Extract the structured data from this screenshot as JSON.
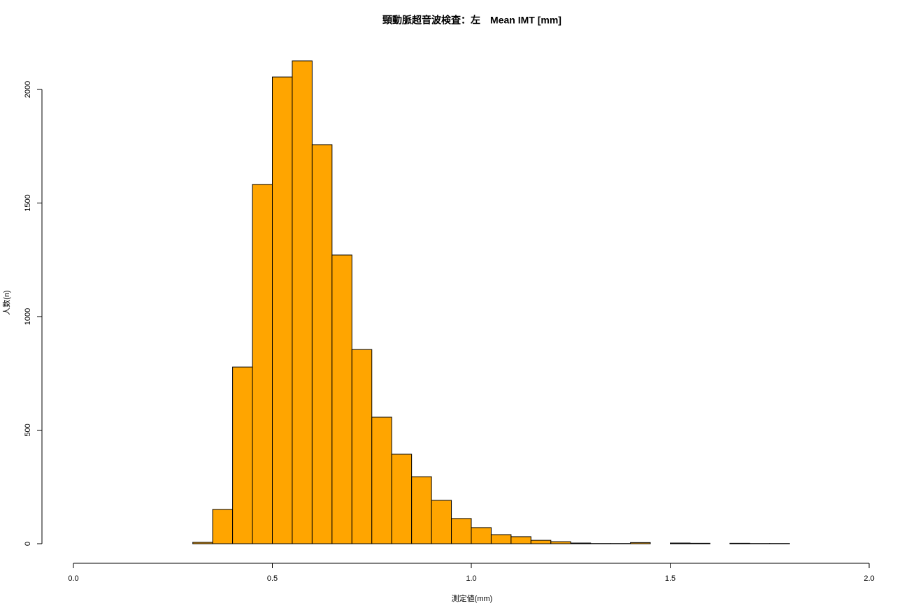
{
  "chart_data": {
    "type": "histogram",
    "title": "頸動脈超音波検査：左　Mean IMT [mm]",
    "x_label": "測定値(mm)",
    "y_label": "人数(n)",
    "color": "#ffa500",
    "bins": [
      0.25,
      0.3,
      0.35,
      0.4,
      0.45,
      0.5,
      0.55,
      0.6,
      0.65,
      0.7,
      0.75,
      0.8,
      0.85,
      0.9,
      0.95,
      1.0,
      1.05,
      1.1,
      1.15,
      1.2,
      1.25,
      1.3,
      1.35,
      1.4,
      1.45,
      1.5,
      1.55,
      1.6,
      1.65,
      1.7,
      1.75,
      1.8
    ],
    "values": [
      0,
      6,
      151,
      778,
      1582,
      2055,
      2126,
      1757,
      1271,
      855,
      557,
      394,
      295,
      191,
      111,
      71,
      40,
      31,
      15,
      9,
      3,
      1,
      1,
      5,
      0,
      3,
      2,
      0,
      2,
      1,
      1
    ],
    "xlim": [
      0,
      2
    ],
    "xticks": [
      {
        "value": 0,
        "label": "0.0"
      },
      0.5,
      {
        "value": 1,
        "label": "1.0"
      },
      1.5,
      {
        "value": 2,
        "label": "2.0"
      }
    ],
    "ylim": [
      0,
      2000
    ],
    "yticks": [
      0,
      500,
      1000,
      1500,
      2000
    ]
  }
}
